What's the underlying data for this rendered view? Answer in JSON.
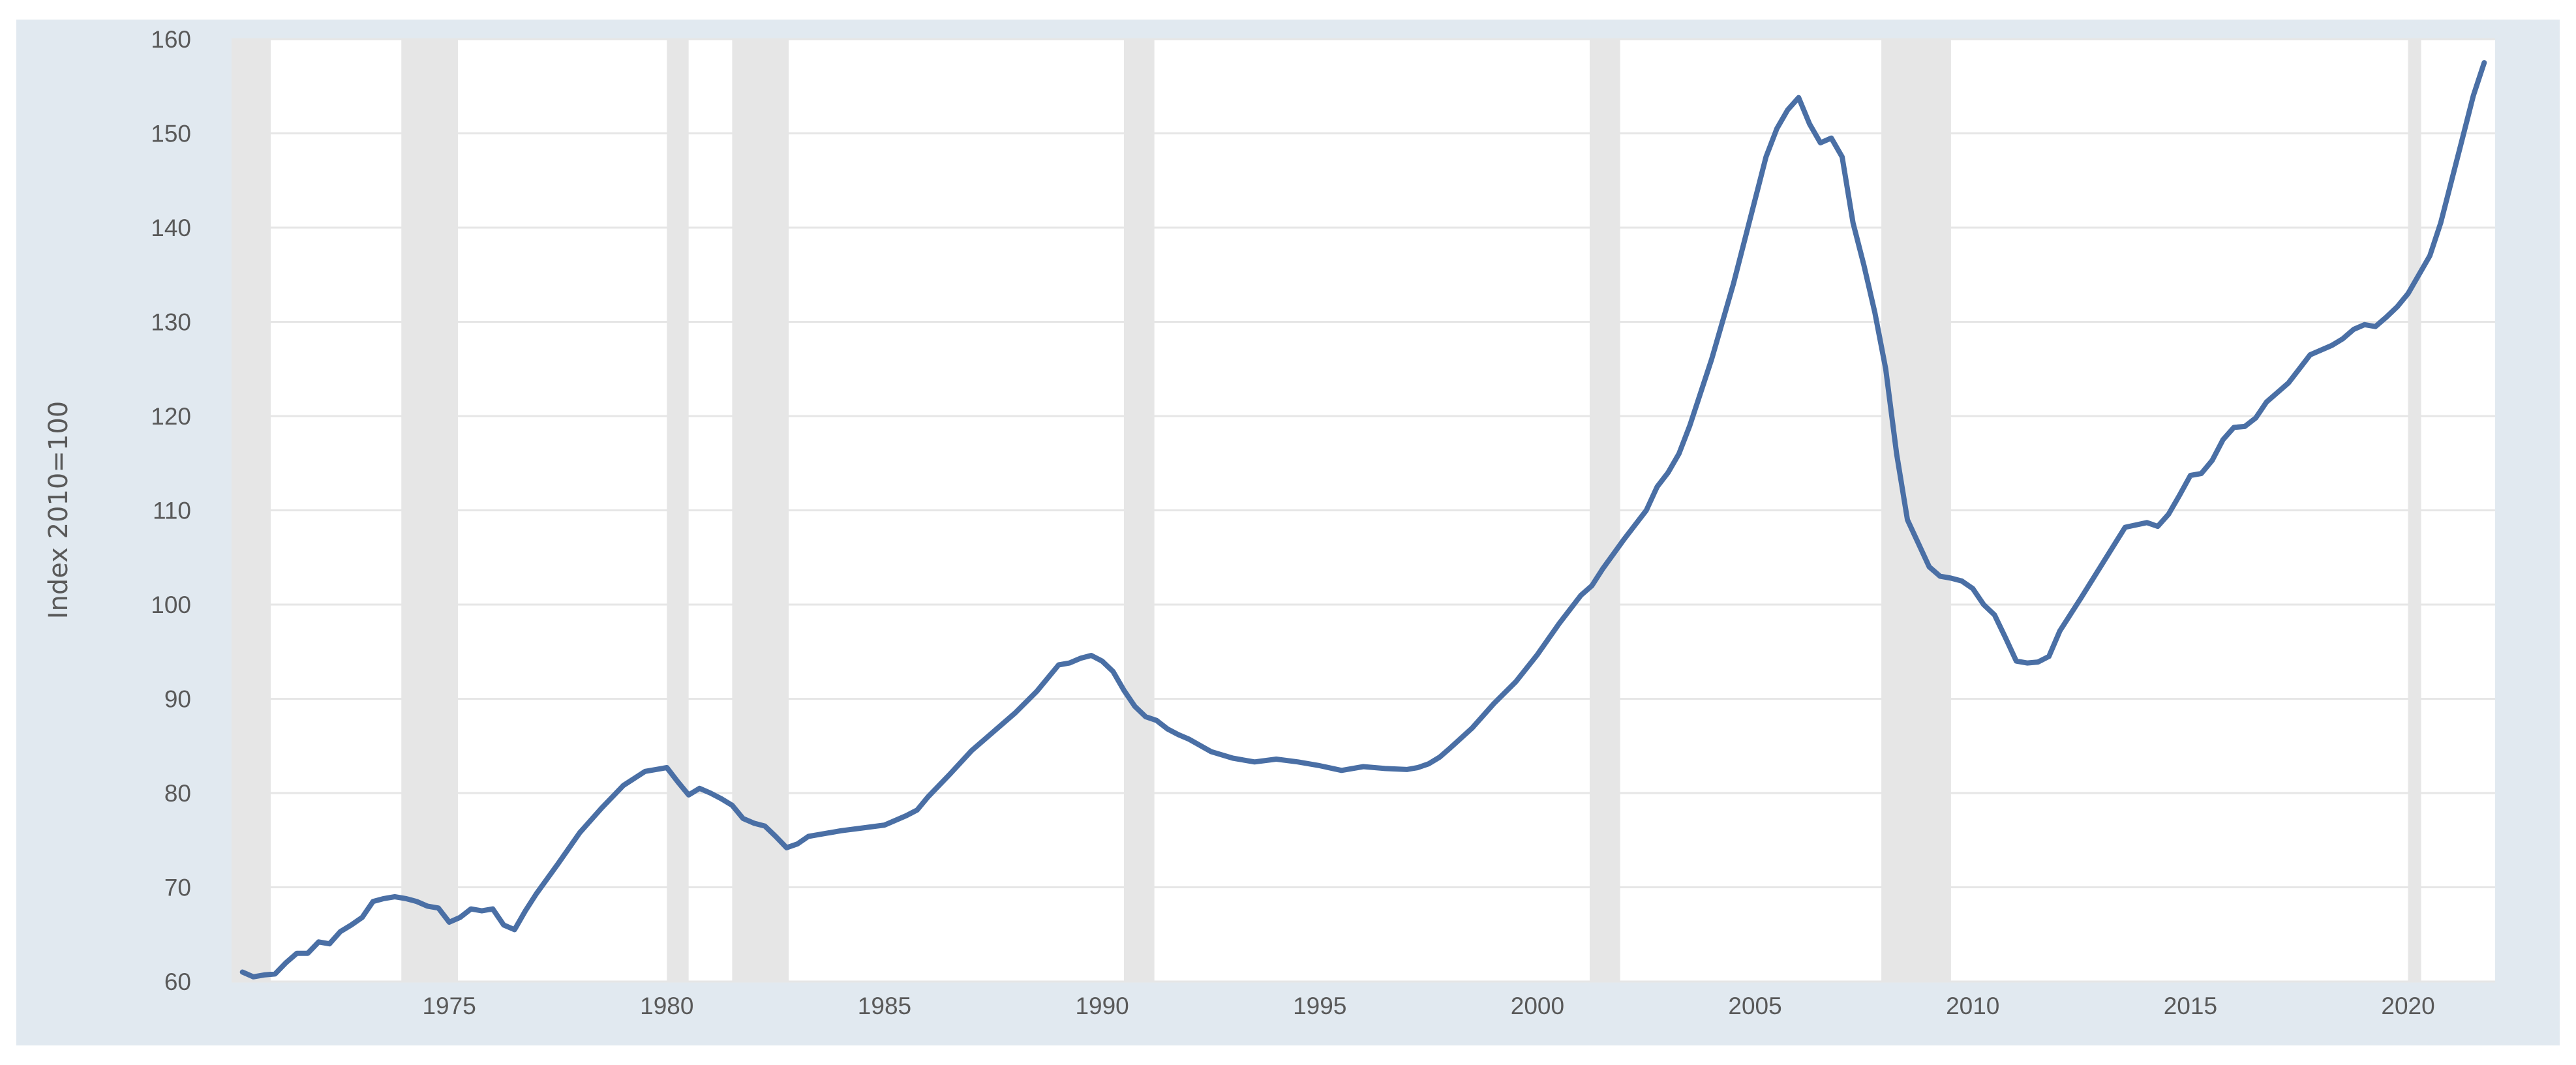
{
  "chart_data": {
    "type": "line",
    "title": "",
    "xlabel": "",
    "ylabel": "Index 2010=100",
    "xlim": [
      1970.0,
      2022.0
    ],
    "ylim": [
      60,
      160
    ],
    "y_ticks": [
      60,
      70,
      80,
      90,
      100,
      110,
      120,
      130,
      140,
      150,
      160
    ],
    "x_ticks": [
      1975,
      1980,
      1985,
      1990,
      1995,
      2000,
      2005,
      2010,
      2015,
      2020
    ],
    "grid": "horizontal",
    "legend": "none",
    "colors": {
      "line": "#4a6fa5",
      "recession": "#e6e6e6",
      "frame": "#e1e9f0",
      "plot_background": "#ffffff",
      "grid": "#e6e6e6",
      "text": "#595959"
    },
    "recessions": [
      [
        1970.0,
        1970.9
      ],
      [
        1973.9,
        1975.2
      ],
      [
        1980.0,
        1980.5
      ],
      [
        1981.5,
        1982.8
      ],
      [
        1990.5,
        1991.2
      ],
      [
        2001.2,
        2001.9
      ],
      [
        2007.9,
        2009.5
      ],
      [
        2020.0,
        2020.3
      ]
    ],
    "series": [
      {
        "x": [
          1970.25,
          1970.5,
          1970.75,
          1971.0,
          1971.25,
          1971.5,
          1971.75,
          1972.0,
          1972.25,
          1972.5,
          1972.75,
          1973.0,
          1973.25,
          1973.5,
          1973.75,
          1974.0,
          1974.25,
          1974.5,
          1974.75,
          1975.0,
          1975.25,
          1975.5,
          1975.75,
          1976.0,
          1976.25,
          1976.5,
          1976.75,
          1977.0,
          1977.5,
          1978.0,
          1978.5,
          1979.0,
          1979.5,
          1980.0,
          1980.25,
          1980.5,
          1980.75,
          1981.0,
          1981.25,
          1981.5,
          1981.75,
          1982.0,
          1982.25,
          1982.5,
          1982.75,
          1983.0,
          1983.25,
          1983.5,
          1984.0,
          1984.5,
          1985.0,
          1985.5,
          1985.75,
          1986.0,
          1986.5,
          1987.0,
          1987.5,
          1988.0,
          1988.5,
          1988.75,
          1989.0,
          1989.25,
          1989.5,
          1989.75,
          1990.0,
          1990.25,
          1990.5,
          1990.75,
          1991.0,
          1991.25,
          1991.5,
          1991.75,
          1992.0,
          1992.5,
          1993.0,
          1993.5,
          1994.0,
          1994.5,
          1995.0,
          1995.5,
          1996.0,
          1996.5,
          1997.0,
          1997.25,
          1997.5,
          1997.75,
          1998.0,
          1998.5,
          1999.0,
          1999.5,
          2000.0,
          2000.5,
          2001.0,
          2001.25,
          2001.5,
          2002.0,
          2002.5,
          2002.75,
          2003.0,
          2003.25,
          2003.5,
          2004.0,
          2004.5,
          2005.0,
          2005.25,
          2005.5,
          2005.75,
          2006.0,
          2006.25,
          2006.5,
          2006.75,
          2007.0,
          2007.25,
          2007.5,
          2007.75,
          2008.0,
          2008.25,
          2008.5,
          2008.75,
          2009.0,
          2009.25,
          2009.5,
          2009.75,
          2010.0,
          2010.25,
          2010.5,
          2010.75,
          2011.0,
          2011.25,
          2011.5,
          2011.75,
          2012.0,
          2012.5,
          2013.0,
          2013.5,
          2014.0,
          2014.25,
          2014.5,
          2014.75,
          2015.0,
          2015.25,
          2015.5,
          2015.75,
          2016.0,
          2016.25,
          2016.5,
          2016.75,
          2017.0,
          2017.25,
          2017.5,
          2017.75,
          2018.0,
          2018.25,
          2018.5,
          2018.75,
          2019.0,
          2019.25,
          2019.5,
          2019.75,
          2020.0,
          2020.25,
          2020.5,
          2020.75,
          2021.0,
          2021.25,
          2021.5,
          2021.75
        ],
        "values": [
          61.0,
          60.5,
          60.7,
          60.8,
          62.0,
          63.0,
          63.0,
          64.2,
          64.0,
          65.3,
          66.0,
          66.8,
          68.5,
          68.8,
          69.0,
          68.8,
          68.5,
          68.0,
          67.8,
          66.3,
          66.8,
          67.7,
          67.5,
          67.7,
          66.0,
          65.5,
          67.5,
          69.3,
          72.5,
          75.8,
          78.4,
          80.8,
          82.3,
          82.7,
          81.2,
          79.8,
          80.5,
          80.0,
          79.4,
          78.7,
          77.3,
          76.8,
          76.5,
          75.4,
          74.2,
          74.6,
          75.4,
          75.6,
          76.0,
          76.3,
          76.6,
          77.6,
          78.2,
          79.6,
          82.0,
          84.5,
          86.5,
          88.5,
          90.8,
          92.2,
          93.6,
          93.8,
          94.3,
          94.6,
          94.0,
          92.9,
          90.9,
          89.2,
          88.1,
          87.7,
          86.8,
          86.2,
          85.7,
          84.4,
          83.7,
          83.3,
          83.6,
          83.3,
          82.9,
          82.4,
          82.8,
          82.6,
          82.5,
          82.7,
          83.1,
          83.8,
          84.8,
          86.9,
          89.5,
          91.8,
          94.7,
          98.0,
          101.0,
          102.0,
          103.8,
          107.0,
          110.0,
          112.5,
          114.0,
          116.0,
          119.0,
          126.0,
          134.0,
          143.0,
          147.5,
          150.5,
          152.5,
          153.8,
          151.0,
          149.0,
          149.5,
          147.5,
          140.5,
          136.0,
          131.0,
          125.0,
          116.0,
          109.0,
          106.5,
          104.0,
          103.0,
          102.8,
          102.5,
          101.7,
          100.0,
          98.9,
          96.5,
          94.0,
          93.8,
          93.9,
          94.5,
          97.2,
          100.8,
          104.5,
          108.2,
          108.7,
          108.3,
          109.6,
          111.6,
          113.7,
          113.9,
          115.3,
          117.5,
          118.8,
          118.9,
          119.8,
          121.5,
          122.5,
          123.5,
          125.0,
          126.5,
          127.0,
          127.5,
          128.2,
          129.2,
          129.7,
          129.5,
          130.5,
          131.6,
          133.0,
          135.0,
          137.0,
          140.5,
          145.0,
          149.5,
          154.0,
          157.5
        ]
      }
    ]
  }
}
